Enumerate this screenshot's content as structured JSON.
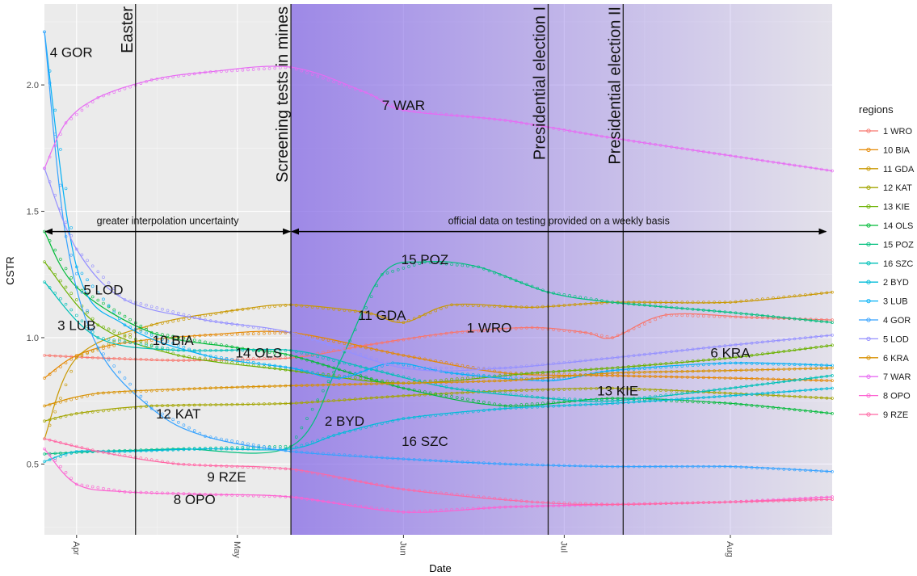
{
  "chart_data": {
    "type": "line",
    "xlabel": "Date",
    "ylabel": "CSTR",
    "x_domain": [
      "2020-03-26",
      "2020-08-20"
    ],
    "ylim": [
      0.22,
      2.32
    ],
    "y_ticks": [
      0.5,
      1.0,
      1.5,
      2.0
    ],
    "y_tick_labels": [
      "0.5",
      "1.0",
      "1.5",
      "2.0"
    ],
    "x_ticks": [
      "2020-04-01",
      "2020-05-01",
      "2020-06-01",
      "2020-07-01",
      "2020-08-01"
    ],
    "x_tick_labels": [
      "Apr",
      "May",
      "Jun",
      "Jul",
      "Aug"
    ],
    "grid": true,
    "events": [
      {
        "date": "2020-04-12",
        "label": "Easter"
      },
      {
        "date": "2020-05-11",
        "label": "Screening tests in mines"
      },
      {
        "date": "2020-06-28",
        "label": "Presidential election I"
      },
      {
        "date": "2020-07-12",
        "label": "Presidential election II"
      }
    ],
    "shaded_region": {
      "start": "2020-05-11",
      "end": "2020-08-20",
      "color": "#8a70e6"
    },
    "arrow_annotations": [
      {
        "start": "2020-03-26",
        "end": "2020-05-11",
        "y": 1.42,
        "label": "greater interpolation uncertainty"
      },
      {
        "start": "2020-05-11",
        "end": "2020-08-19",
        "y": 1.42,
        "label": "official data on testing provided on a weekly basis"
      }
    ],
    "legend": {
      "title": "regions",
      "position": "right"
    },
    "series": [
      {
        "name": "1 WRO",
        "label": "1 WRO",
        "label_x": "2020-06-17",
        "label_y": 1.04,
        "color": "#F8766D",
        "x": [
          "2020-03-26",
          "2020-04-05",
          "2020-04-20",
          "2020-05-11",
          "2020-05-25",
          "2020-06-10",
          "2020-06-25",
          "2020-07-05",
          "2020-07-10",
          "2020-07-20",
          "2020-08-05",
          "2020-08-20"
        ],
        "y": [
          0.93,
          0.92,
          0.91,
          0.92,
          0.97,
          1.02,
          1.04,
          1.02,
          1.0,
          1.09,
          1.08,
          1.07
        ]
      },
      {
        "name": "10 BIA",
        "label": "10 BIA",
        "label_x": "2020-04-19",
        "label_y": 0.99,
        "color": "#E58700",
        "x": [
          "2020-03-26",
          "2020-04-01",
          "2020-04-10",
          "2020-04-25",
          "2020-05-11",
          "2020-06-01",
          "2020-06-20",
          "2020-07-10",
          "2020-08-01",
          "2020-08-20"
        ],
        "y": [
          0.84,
          0.93,
          0.98,
          1.01,
          1.02,
          0.93,
          0.86,
          0.85,
          0.84,
          0.83
        ]
      },
      {
        "name": "11 GDA",
        "label": "11 GDA",
        "label_x": "2020-05-28",
        "label_y": 1.09,
        "color": "#C99800",
        "x": [
          "2020-03-26",
          "2020-04-01",
          "2020-04-15",
          "2020-05-01",
          "2020-05-11",
          "2020-05-25",
          "2020-06-01",
          "2020-06-10",
          "2020-06-25",
          "2020-07-10",
          "2020-08-01",
          "2020-08-20"
        ],
        "y": [
          0.6,
          0.92,
          1.05,
          1.11,
          1.13,
          1.1,
          1.06,
          1.13,
          1.12,
          1.14,
          1.14,
          1.18
        ]
      },
      {
        "name": "12 KAT",
        "label": "12 KAT",
        "label_x": "2020-04-20",
        "label_y": 0.7,
        "color": "#A3A500",
        "x": [
          "2020-03-26",
          "2020-04-01",
          "2020-04-15",
          "2020-05-11",
          "2020-06-01",
          "2020-06-20",
          "2020-07-10",
          "2020-08-01",
          "2020-08-20"
        ],
        "y": [
          0.67,
          0.7,
          0.73,
          0.74,
          0.77,
          0.79,
          0.8,
          0.78,
          0.76
        ]
      },
      {
        "name": "13 KIE",
        "label": "13 KIE",
        "label_x": "2020-07-11",
        "label_y": 0.79,
        "color": "#6BB100",
        "x": [
          "2020-03-26",
          "2020-04-05",
          "2020-04-20",
          "2020-05-11",
          "2020-06-01",
          "2020-06-25",
          "2020-07-10",
          "2020-08-01",
          "2020-08-20"
        ],
        "y": [
          1.3,
          1.05,
          0.93,
          0.87,
          0.82,
          0.86,
          0.88,
          0.92,
          0.97
        ]
      },
      {
        "name": "14 OLS",
        "label": "14 OLS",
        "label_x": "2020-05-05",
        "label_y": 0.94,
        "color": "#00BA38",
        "x": [
          "2020-03-26",
          "2020-04-01",
          "2020-04-15",
          "2020-05-01",
          "2020-05-11",
          "2020-06-01",
          "2020-06-20",
          "2020-07-10",
          "2020-08-01",
          "2020-08-20"
        ],
        "y": [
          1.42,
          1.2,
          1.02,
          0.96,
          0.93,
          0.8,
          0.73,
          0.76,
          0.74,
          0.7
        ]
      },
      {
        "name": "15 POZ",
        "label": "15 POZ",
        "label_x": "2020-06-05",
        "label_y": 1.31,
        "color": "#00BF7D",
        "x": [
          "2020-03-26",
          "2020-04-05",
          "2020-04-20",
          "2020-05-11",
          "2020-05-20",
          "2020-05-28",
          "2020-06-05",
          "2020-06-15",
          "2020-06-28",
          "2020-07-10",
          "2020-08-01",
          "2020-08-20"
        ],
        "y": [
          0.54,
          0.55,
          0.56,
          0.57,
          0.9,
          1.25,
          1.3,
          1.28,
          1.18,
          1.14,
          1.1,
          1.06
        ]
      },
      {
        "name": "16 SZC",
        "label": "16 SZC",
        "label_x": "2020-06-05",
        "label_y": 0.59,
        "color": "#00C0B8",
        "x": [
          "2020-03-26",
          "2020-04-05",
          "2020-04-20",
          "2020-05-11",
          "2020-05-25",
          "2020-06-10",
          "2020-06-28",
          "2020-07-10",
          "2020-08-01",
          "2020-08-20"
        ],
        "y": [
          1.22,
          1.0,
          0.95,
          0.95,
          0.88,
          0.8,
          0.76,
          0.75,
          0.8,
          0.85
        ]
      },
      {
        "name": "2 BYD",
        "label": "2 BYD",
        "label_x": "2020-05-21",
        "label_y": 0.67,
        "color": "#00BCD8",
        "x": [
          "2020-03-26",
          "2020-04-01",
          "2020-04-10",
          "2020-04-25",
          "2020-05-11",
          "2020-05-20",
          "2020-06-01",
          "2020-06-20",
          "2020-07-10",
          "2020-08-01",
          "2020-08-20"
        ],
        "y": [
          0.51,
          0.55,
          0.55,
          0.56,
          0.56,
          0.62,
          0.68,
          0.72,
          0.74,
          0.77,
          0.8
        ]
      },
      {
        "name": "3 LUB",
        "label": "3 LUB",
        "label_x": "2020-04-01",
        "label_y": 1.05,
        "color": "#00B0F6",
        "x": [
          "2020-03-26",
          "2020-04-01",
          "2020-04-10",
          "2020-04-25",
          "2020-05-11",
          "2020-05-20",
          "2020-05-30",
          "2020-06-10",
          "2020-06-28",
          "2020-07-10",
          "2020-08-01",
          "2020-08-20"
        ],
        "y": [
          2.21,
          1.28,
          1.05,
          0.93,
          0.88,
          0.84,
          0.9,
          0.86,
          0.83,
          0.87,
          0.9,
          0.89
        ]
      },
      {
        "name": "4 GOR",
        "label": "4 GOR",
        "label_x": "2020-03-31",
        "label_y": 2.13,
        "color": "#35A2FF",
        "x": [
          "2020-03-26",
          "2020-03-30",
          "2020-04-05",
          "2020-04-15",
          "2020-04-25",
          "2020-05-11",
          "2020-06-01",
          "2020-06-20",
          "2020-07-10",
          "2020-08-01",
          "2020-08-20"
        ],
        "y": [
          2.21,
          1.4,
          0.96,
          0.72,
          0.61,
          0.55,
          0.52,
          0.5,
          0.49,
          0.49,
          0.47
        ]
      },
      {
        "name": "5 LOD",
        "label": "5 LOD",
        "label_x": "2020-04-06",
        "label_y": 1.19,
        "color": "#9590FF",
        "x": [
          "2020-03-26",
          "2020-04-01",
          "2020-04-10",
          "2020-04-25",
          "2020-05-11",
          "2020-06-01",
          "2020-06-20",
          "2020-07-10",
          "2020-08-01",
          "2020-08-20"
        ],
        "y": [
          1.67,
          1.35,
          1.15,
          1.07,
          1.02,
          0.88,
          0.88,
          0.92,
          0.97,
          1.01
        ]
      },
      {
        "name": "6 KRA",
        "label": "6 KRA",
        "label_x": "2020-08-01",
        "label_y": 0.94,
        "color": "#D89000",
        "x": [
          "2020-03-26",
          "2020-04-05",
          "2020-04-25",
          "2020-05-11",
          "2020-06-01",
          "2020-06-20",
          "2020-07-10",
          "2020-08-01",
          "2020-08-20"
        ],
        "y": [
          0.73,
          0.78,
          0.8,
          0.81,
          0.82,
          0.83,
          0.86,
          0.87,
          0.88
        ]
      },
      {
        "name": "7 WAR",
        "label": "7 WAR",
        "label_x": "2020-06-01",
        "label_y": 1.92,
        "color": "#E76BF3",
        "x": [
          "2020-03-26",
          "2020-03-30",
          "2020-04-05",
          "2020-04-15",
          "2020-04-25",
          "2020-05-11",
          "2020-05-25",
          "2020-06-01",
          "2020-06-20",
          "2020-07-10",
          "2020-08-01",
          "2020-08-20"
        ],
        "y": [
          1.67,
          1.85,
          1.95,
          2.02,
          2.05,
          2.07,
          1.97,
          1.9,
          1.86,
          1.79,
          1.72,
          1.66
        ]
      },
      {
        "name": "8 OPO",
        "label": "8 OPO",
        "label_x": "2020-04-23",
        "label_y": 0.36,
        "color": "#FD61D1",
        "x": [
          "2020-03-26",
          "2020-04-01",
          "2020-04-10",
          "2020-04-25",
          "2020-05-11",
          "2020-06-01",
          "2020-06-20",
          "2020-07-10",
          "2020-08-01",
          "2020-08-20"
        ],
        "y": [
          0.56,
          0.42,
          0.39,
          0.38,
          0.37,
          0.31,
          0.33,
          0.34,
          0.35,
          0.37
        ]
      },
      {
        "name": "9 RZE",
        "label": "9 RZE",
        "label_x": "2020-04-29",
        "label_y": 0.45,
        "color": "#FF67A4",
        "x": [
          "2020-03-26",
          "2020-04-05",
          "2020-04-20",
          "2020-05-11",
          "2020-06-01",
          "2020-06-25",
          "2020-07-10",
          "2020-08-01",
          "2020-08-20"
        ],
        "y": [
          0.6,
          0.55,
          0.5,
          0.48,
          0.4,
          0.35,
          0.34,
          0.35,
          0.36
        ]
      }
    ]
  }
}
